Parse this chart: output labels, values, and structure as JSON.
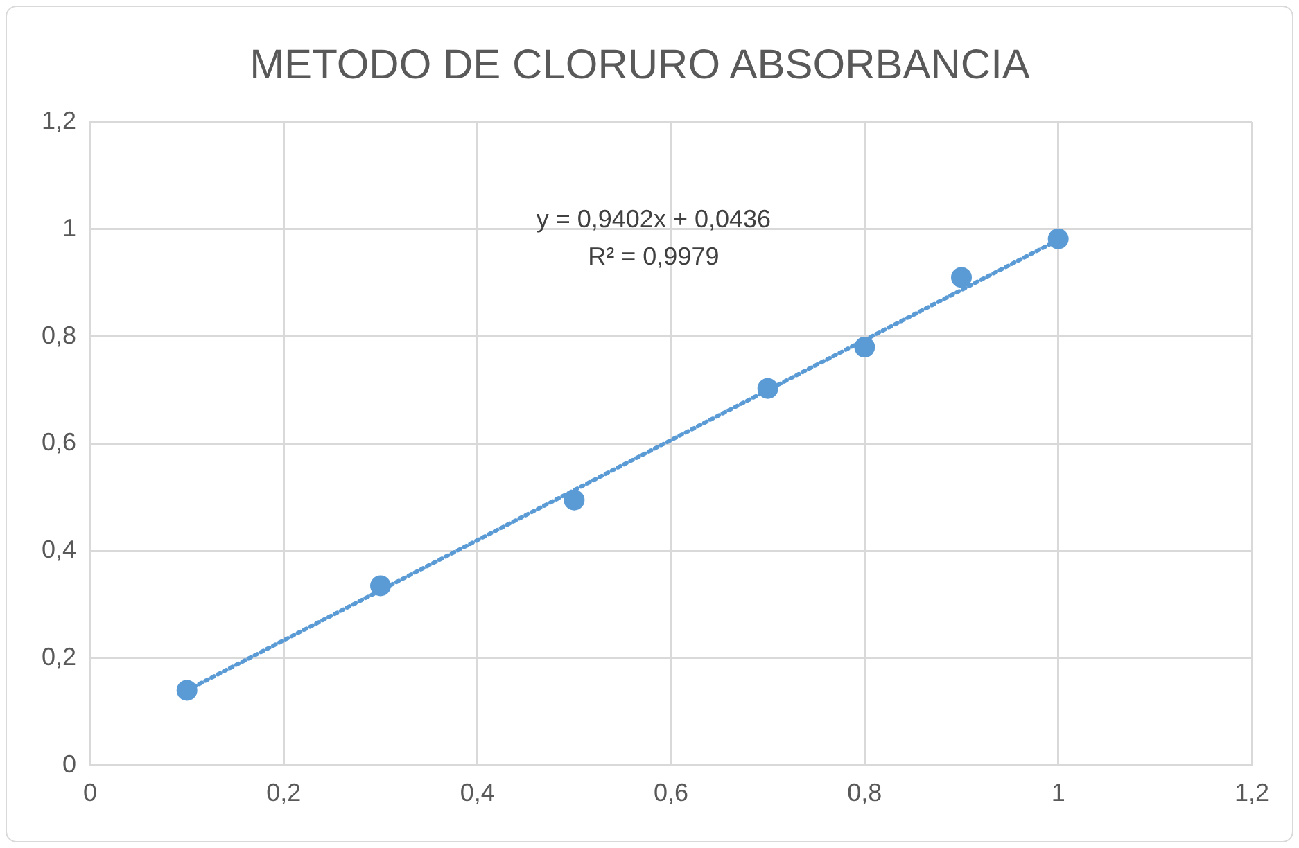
{
  "chart_data": {
    "type": "scatter",
    "title": "METODO DE CLORURO ABSORBANCIA",
    "x": [
      0.1,
      0.3,
      0.5,
      0.7,
      0.8,
      0.9,
      1
    ],
    "series": [
      {
        "color": "#5b9bd5",
        "marker": "circle",
        "values": [
          0.14,
          0.335,
          0.495,
          0.703,
          0.78,
          0.91,
          0.982
        ]
      },
      {
        "type": "line",
        "color": "#5b9bd5",
        "marker": "none",
        "line_style": "dotted",
        "x": [
          0.1,
          1
        ],
        "values": [
          0.14,
          0.98
        ]
      }
    ],
    "xlim": [
      0,
      1.2
    ],
    "xticks": [
      0,
      {
        "value": 0.2,
        "label": "0,2"
      },
      {
        "value": 0.4,
        "label": "0,4"
      },
      {
        "value": 0.6,
        "label": "0,6"
      },
      {
        "value": 0.8,
        "label": "0,8"
      },
      1,
      {
        "value": 1.2,
        "label": "1,2"
      }
    ],
    "ylim": [
      0,
      1.2
    ],
    "yticks": [
      0,
      {
        "value": 0.2,
        "label": "0,2"
      },
      {
        "value": 0.4,
        "label": "0,4"
      },
      {
        "value": 0.6,
        "label": "0,6"
      },
      {
        "value": 0.8,
        "label": "0,8"
      },
      1,
      {
        "value": 1.2,
        "label": "1,2"
      }
    ],
    "annotations": [
      "y = 0,9402x + 0,0436",
      "R² = 0,9979"
    ],
    "grid": true,
    "legend": false
  }
}
